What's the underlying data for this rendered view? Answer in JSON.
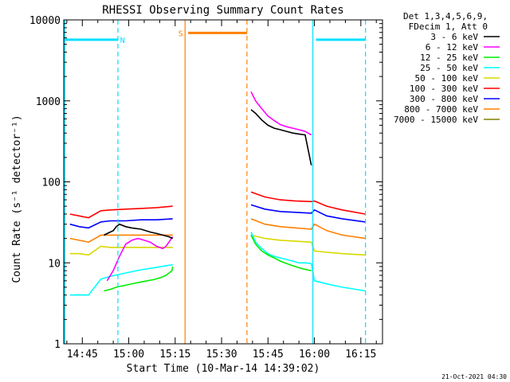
{
  "chart_data": {
    "type": "line",
    "title": "RHESSI Observing Summary Count Rates",
    "xlabel": "Start Time (10-Mar-14 14:39:02)",
    "ylabel": "Count Rate (s⁻¹ detector⁻¹)",
    "footer": "21-Oct-2021 04:30",
    "xlim_min": [
      0,
      103
    ],
    "ylim": [
      1,
      10000
    ],
    "yscale": "log",
    "xticks": [
      {
        "label": "14:45",
        "min": 6
      },
      {
        "label": "15:00",
        "min": 21
      },
      {
        "label": "15:15",
        "min": 36
      },
      {
        "label": "15:30",
        "min": 51
      },
      {
        "label": "15:45",
        "min": 66
      },
      {
        "label": "16:00",
        "min": 81
      },
      {
        "label": "16:15",
        "min": 96
      }
    ],
    "yticks": [
      {
        "label": "1",
        "v": 1
      },
      {
        "label": "10",
        "v": 10
      },
      {
        "label": "100",
        "v": 100
      },
      {
        "label": "1000",
        "v": 1000
      },
      {
        "label": "10000",
        "v": 10000
      }
    ],
    "legend": {
      "placement": "right",
      "header": [
        "Det 1,3,4,5,6,9,",
        "FDecim 1, Att 0"
      ]
    },
    "markers": [
      {
        "label": "N",
        "color": "#00e0ff",
        "level": 5700,
        "segments": [
          [
            0,
            17.5
          ],
          [
            81.5,
            97.5
          ]
        ],
        "vlines": [
          17.5,
          97.5
        ],
        "label_min": 19
      },
      {
        "label": "S",
        "color": "#ff8000",
        "level": 6900,
        "segments": [
          [
            40.2,
            59.2
          ]
        ],
        "vlines": [
          59.2
        ],
        "label_min": 37.8
      }
    ],
    "solid_vlines": [
      {
        "min": 0.3,
        "color": "#00e0ff"
      },
      {
        "min": 39.2,
        "color": "#ff8000"
      },
      {
        "min": 80.5,
        "color": "#00e0ff"
      }
    ],
    "series": [
      {
        "name": "3 - 6 keV",
        "color": "#000000",
        "x": [
          13,
          15,
          16,
          17,
          18,
          20,
          22,
          25,
          28,
          30,
          32,
          34,
          35.2,
          60.5,
          62,
          64,
          66,
          68,
          70,
          72,
          74,
          76,
          78,
          80
        ],
        "y": [
          22,
          24,
          25,
          28,
          30,
          28,
          27,
          26,
          24,
          23,
          22,
          21,
          20,
          780,
          700,
          580,
          500,
          460,
          440,
          420,
          400,
          390,
          380,
          160
        ]
      },
      {
        "name": "6 - 12 keV",
        "color": "#ff00ff",
        "x": [
          14,
          16,
          18,
          20,
          22,
          24,
          26,
          28,
          30,
          32,
          33,
          34,
          35.2,
          60.5,
          62,
          64,
          66,
          68,
          70,
          72,
          74,
          76,
          78,
          80
        ],
        "y": [
          6,
          8,
          12,
          17,
          19,
          20,
          19,
          18,
          16,
          15,
          16,
          18,
          21,
          1300,
          1000,
          800,
          650,
          570,
          510,
          480,
          460,
          440,
          420,
          380
        ]
      },
      {
        "name": "12 - 25 keV",
        "color": "#00ee00",
        "x": [
          13,
          15,
          17,
          19,
          21,
          23,
          25,
          27,
          29,
          31,
          33,
          35,
          35.2,
          60.5,
          62,
          64,
          66,
          68,
          70,
          72,
          74,
          76,
          78,
          80
        ],
        "y": [
          4.5,
          4.7,
          5,
          5.2,
          5.4,
          5.6,
          5.8,
          6,
          6.2,
          6.5,
          7,
          8,
          9,
          22,
          17,
          14,
          12.5,
          11.5,
          10.5,
          9.8,
          9.2,
          8.7,
          8.3,
          8
        ]
      },
      {
        "name": "25 - 50 keV",
        "color": "#00ffff",
        "x": [
          2,
          5,
          8,
          12,
          15,
          20,
          25,
          30,
          35.2,
          60.5,
          62,
          64,
          66,
          68,
          70,
          72,
          74,
          76,
          78,
          80,
          81,
          85,
          90,
          97.5
        ],
        "y": [
          4,
          4,
          4,
          6.3,
          6.8,
          7.5,
          8.2,
          8.8,
          9.5,
          24,
          18,
          15,
          13,
          12,
          11.5,
          11,
          10.5,
          10,
          10,
          9.8,
          6,
          5.5,
          5,
          4.5
        ]
      },
      {
        "name": "50 - 100 keV",
        "color": "#d8d800",
        "x": [
          2,
          5,
          8,
          12,
          15,
          20,
          25,
          30,
          35.2,
          60.5,
          65,
          70,
          75,
          80,
          81,
          85,
          90,
          97.5
        ],
        "y": [
          13,
          13,
          12.5,
          16,
          15.5,
          15.5,
          15.5,
          15.5,
          15.5,
          22,
          20,
          19,
          18.5,
          18,
          14,
          13.5,
          13,
          12.5
        ]
      },
      {
        "name": "100 - 300 keV",
        "color": "#ff0000",
        "x": [
          2,
          5,
          8,
          12,
          15,
          20,
          25,
          30,
          35.2,
          60.5,
          65,
          70,
          75,
          80,
          81,
          85,
          90,
          97.5
        ],
        "y": [
          40,
          38,
          36,
          44,
          45,
          46,
          47,
          48,
          50,
          75,
          65,
          60,
          58,
          57,
          58,
          50,
          45,
          40
        ]
      },
      {
        "name": "300 - 800 keV",
        "color": "#0000ff",
        "x": [
          2,
          5,
          8,
          12,
          15,
          20,
          25,
          30,
          35.2,
          60.5,
          65,
          70,
          75,
          80,
          81,
          85,
          90,
          97.5
        ],
        "y": [
          30,
          28,
          27,
          32,
          33,
          33,
          34,
          34,
          35,
          52,
          46,
          43,
          42,
          41,
          45,
          38,
          35,
          32
        ]
      },
      {
        "name": "800 - 7000 keV",
        "color": "#ff8000",
        "x": [
          2,
          5,
          8,
          12,
          15,
          20,
          25,
          30,
          35.2,
          60.5,
          65,
          70,
          75,
          80,
          81,
          85,
          90,
          97.5
        ],
        "y": [
          20,
          19,
          18,
          22,
          22,
          22,
          22,
          22,
          22,
          35,
          30,
          28,
          27,
          26,
          30,
          25,
          22,
          20
        ]
      },
      {
        "name": "7000 - 15000 keV",
        "color": "#808000",
        "x": [],
        "y": []
      }
    ]
  }
}
